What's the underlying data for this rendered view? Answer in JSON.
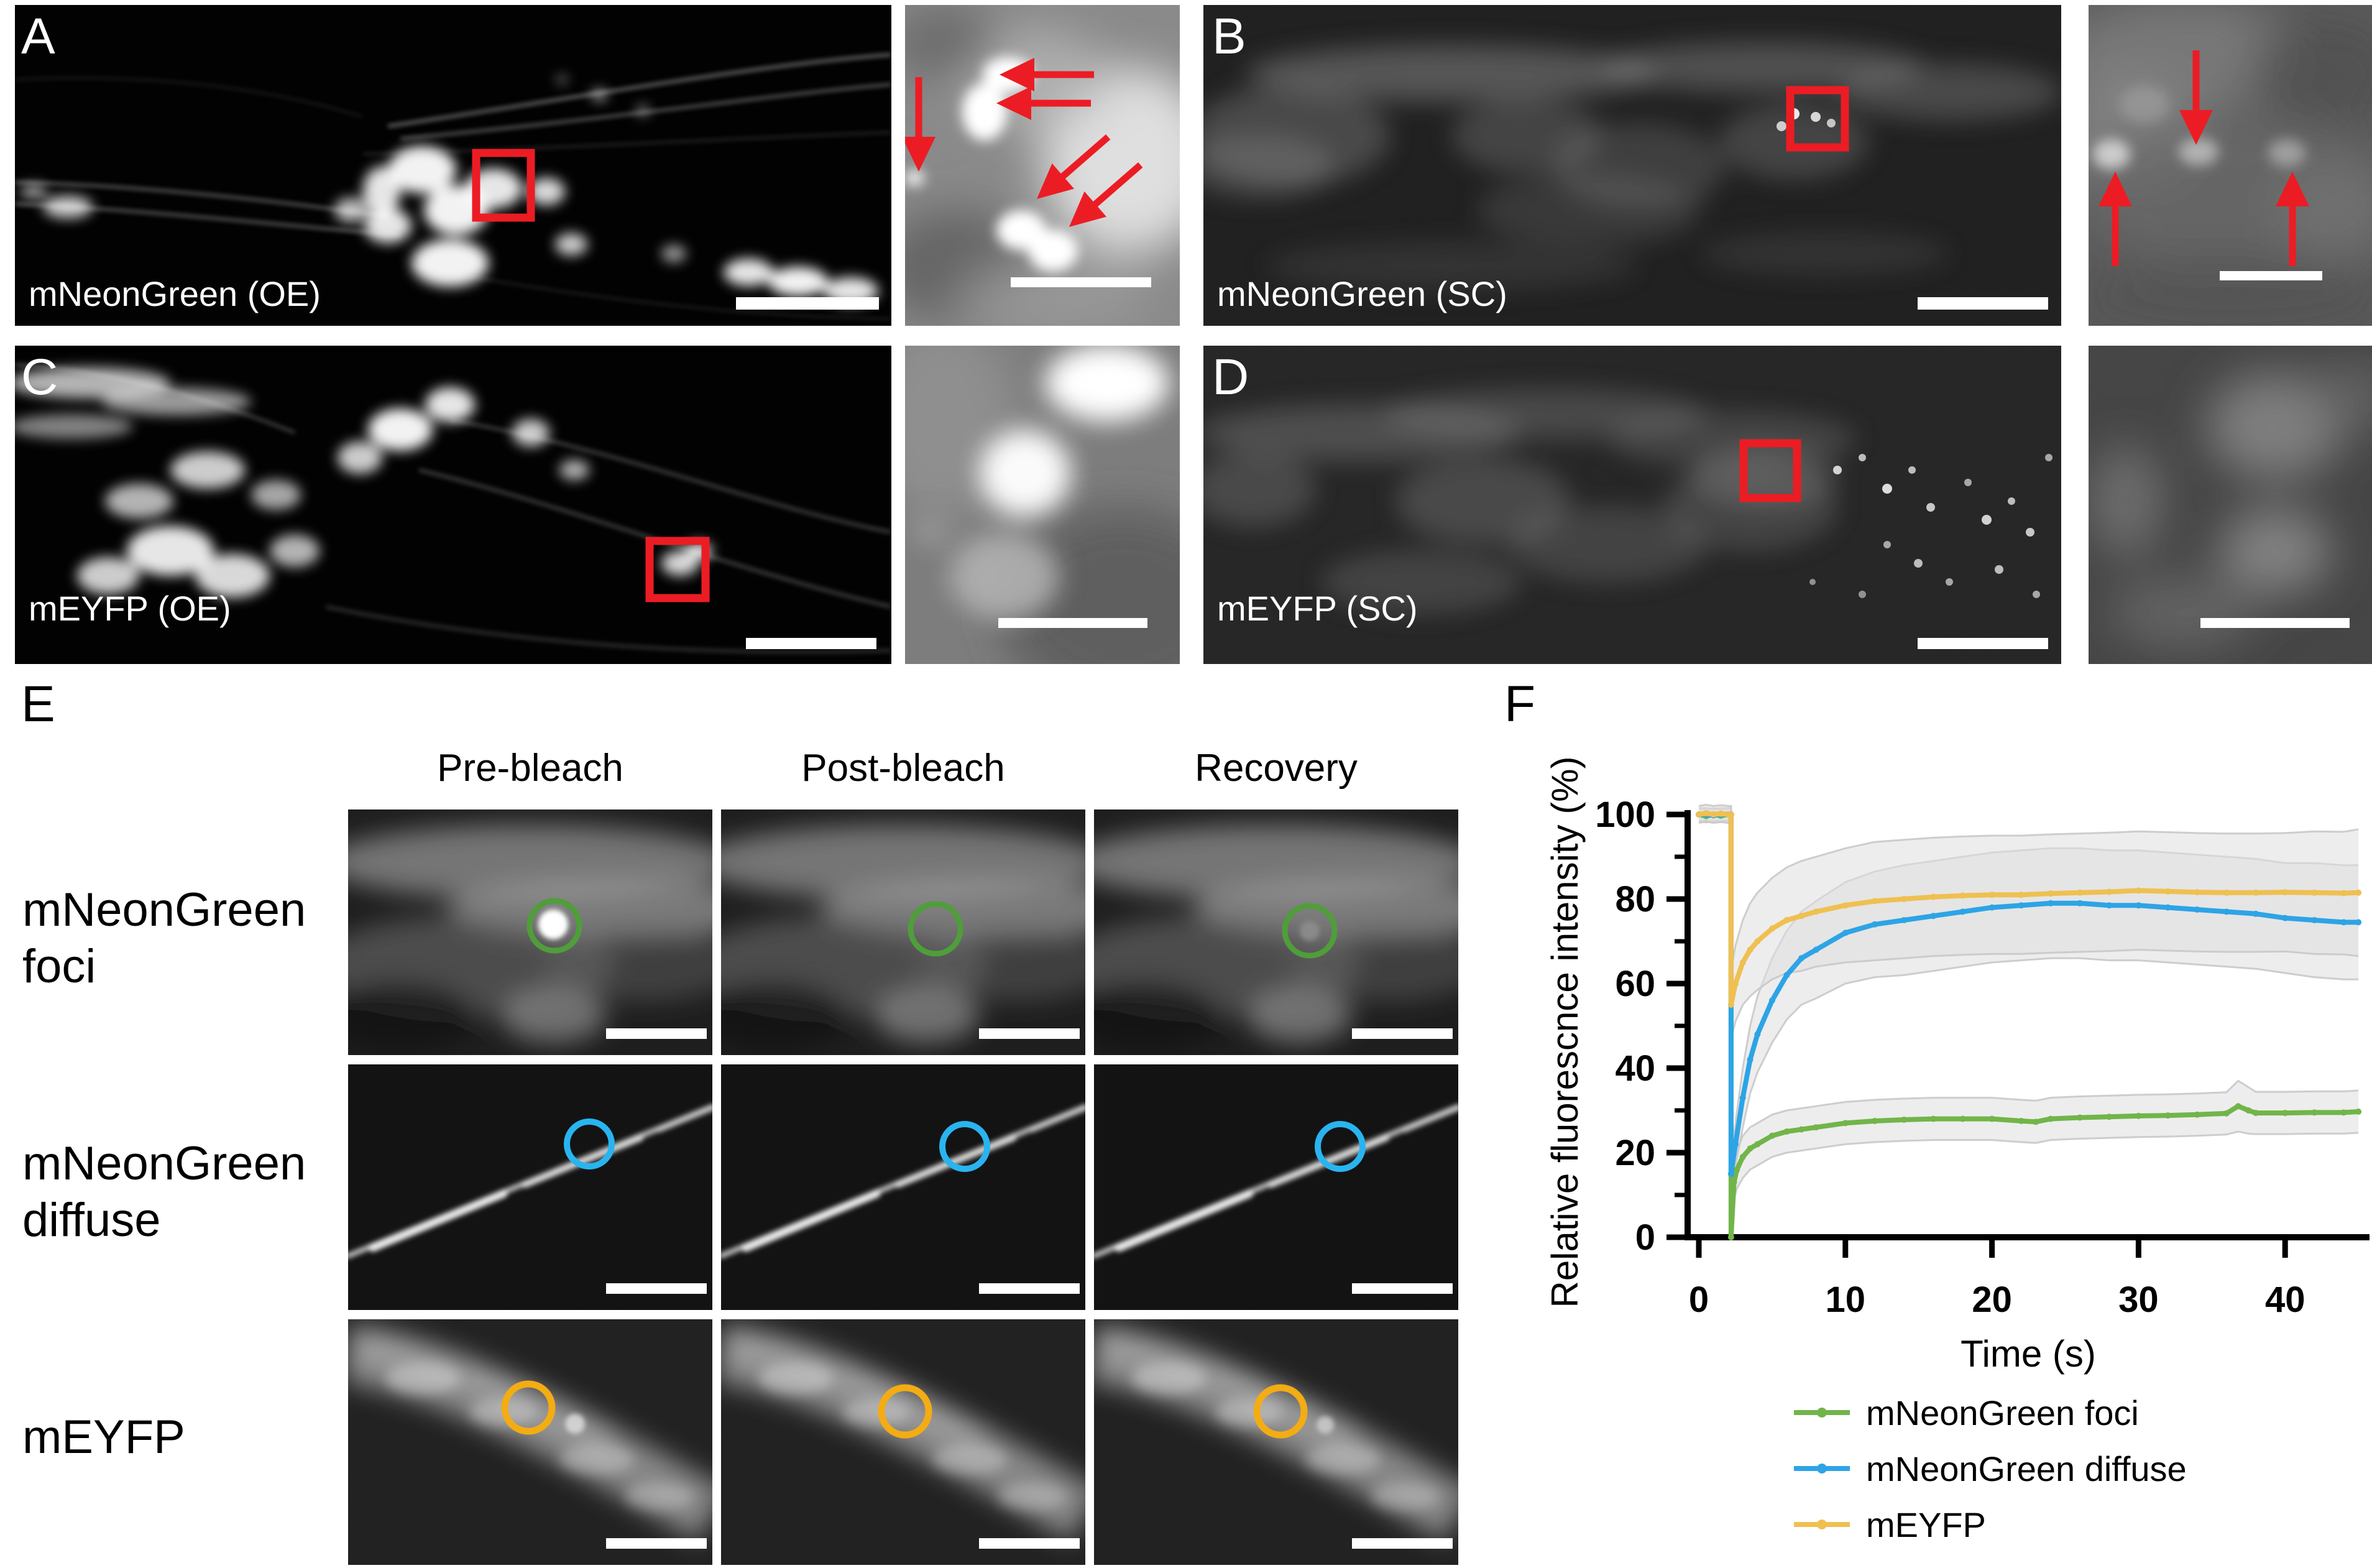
{
  "figure": {
    "panels": {
      "A": {
        "letter": "A",
        "label": "mNeonGreen (OE)"
      },
      "B": {
        "letter": "B",
        "label": "mNeonGreen (SC)"
      },
      "C": {
        "letter": "C",
        "label": "mEYFP (OE)"
      },
      "D": {
        "letter": "D",
        "label": "mEYFP (SC)"
      },
      "E": {
        "letter": "E",
        "col_headers": [
          "Pre-bleach",
          "Post-bleach",
          "Recovery"
        ],
        "row_labels": [
          "mNeonGreen\nfoci",
          "mNeonGreen\ndiffuse",
          "mEYFP"
        ]
      },
      "F": {
        "letter": "F"
      }
    },
    "colors": {
      "annotation_red": "#ec1c24",
      "foci_green": "#4f9e3a",
      "diffuse_blue": "#29b4f0",
      "eyfp_orange": "#f3ac14",
      "error_band": "#dedede"
    }
  },
  "chart_data": {
    "type": "line",
    "title": "",
    "xlabel": "Time (s)",
    "ylabel": "Relative fluorescnce intensity (%)",
    "xlim": [
      0,
      45.6
    ],
    "ylim": [
      0,
      100
    ],
    "xticks": [
      0,
      10,
      20,
      30,
      40
    ],
    "yticks": [
      0,
      20,
      40,
      60,
      80,
      100
    ],
    "yticks_minor": [
      10,
      30,
      50,
      70,
      90
    ],
    "grid": false,
    "legend_position": "bottom",
    "bleach_time_s": 2.2,
    "series": [
      {
        "name": "mNeonGreen foci",
        "color": "#71b54a",
        "x": [
          0,
          0.5,
          1,
          1.5,
          2,
          2.2,
          2.2,
          2.4,
          2.6,
          3,
          3.5,
          4,
          5,
          6,
          7,
          8,
          10,
          12,
          14,
          16,
          18,
          20,
          22,
          23,
          24,
          26,
          28,
          30,
          32,
          34,
          36,
          36.8,
          37.5,
          38,
          40,
          42,
          44,
          45
        ],
        "y": [
          100,
          99.6,
          100,
          99.7,
          100,
          100,
          0,
          13,
          16,
          19,
          21,
          22,
          24,
          25,
          25.5,
          26,
          27,
          27.5,
          27.8,
          28,
          28,
          28,
          27.5,
          27.3,
          28,
          28.3,
          28.5,
          28.7,
          28.8,
          29,
          29.3,
          31,
          30,
          29.4,
          29.4,
          29.5,
          29.5,
          29.7
        ],
        "err": [
          1.5,
          1.5,
          1.5,
          1.5,
          1.5,
          1.5,
          0,
          4,
          4.5,
          5,
          5,
          5,
          5,
          5,
          5,
          5,
          5,
          5,
          5,
          5,
          5,
          5,
          5,
          5,
          5,
          5,
          5,
          5,
          5,
          5,
          5,
          6,
          5.5,
          5,
          5,
          5,
          5,
          5
        ]
      },
      {
        "name": "mNeonGreen diffuse",
        "color": "#2da4e6",
        "x": [
          0,
          0.5,
          1,
          1.5,
          2,
          2.2,
          2.2,
          2.5,
          3,
          3.5,
          4,
          5,
          6,
          7,
          8,
          10,
          12,
          14,
          16,
          18,
          20,
          22,
          24,
          26,
          28,
          30,
          32,
          34,
          36,
          38,
          40,
          42,
          44,
          45
        ],
        "y": [
          100,
          100,
          99.8,
          100,
          100,
          100,
          15,
          22,
          33,
          42,
          48,
          56,
          62,
          66,
          68,
          72,
          74,
          75,
          76,
          77,
          78,
          78.5,
          79,
          79,
          78.5,
          78.5,
          78,
          77.5,
          77,
          76.5,
          75.5,
          75,
          74.5,
          74.5
        ],
        "err": [
          1.5,
          1.5,
          1.5,
          1.5,
          1.5,
          1.5,
          4,
          5,
          7,
          8,
          9,
          10,
          10.5,
          11,
          11.5,
          12,
          12.5,
          13,
          13,
          13,
          13,
          13,
          13,
          13,
          13,
          13,
          13,
          13,
          13,
          13,
          13,
          13.5,
          13.5,
          13.5
        ]
      },
      {
        "name": "mEYFP",
        "color": "#efc051",
        "x": [
          0,
          0.5,
          1,
          1.5,
          2,
          2.2,
          2.2,
          2.5,
          3,
          3.5,
          4,
          5,
          6,
          7,
          8,
          10,
          12,
          14,
          16,
          18,
          20,
          22,
          24,
          26,
          28,
          30,
          32,
          34,
          36,
          38,
          40,
          42,
          44,
          45
        ],
        "y": [
          100,
          100.3,
          100,
          100.2,
          100,
          100,
          55,
          60,
          65,
          68,
          70,
          73,
          75,
          76,
          77,
          78.5,
          79.5,
          80,
          80.5,
          80.8,
          81,
          81,
          81.3,
          81.5,
          81.7,
          82,
          81.8,
          81.6,
          81.5,
          81.5,
          81.6,
          81.5,
          81.4,
          81.5
        ],
        "err": [
          2,
          2,
          2,
          2,
          2,
          2,
          8,
          9,
          10,
          11,
          11.5,
          12,
          12.5,
          13,
          13,
          13.5,
          14,
          14,
          14,
          14,
          14,
          14,
          14,
          14,
          14,
          14,
          14,
          14,
          14,
          14,
          14,
          14.5,
          14.5,
          15
        ]
      }
    ]
  }
}
